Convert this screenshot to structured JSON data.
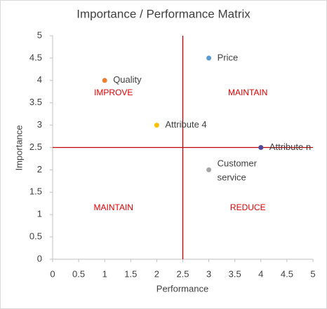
{
  "chart_data": {
    "type": "scatter",
    "title": "Importance / Performance Matrix",
    "x_label": "Performance",
    "y_label": "Importance",
    "series": [
      {
        "name": "Price",
        "color": "#5b9bd5",
        "x": [
          3
        ],
        "values": [
          4.5
        ]
      },
      {
        "name": "Quality",
        "color": "#ed7d31",
        "x": [
          1
        ],
        "values": [
          4
        ]
      },
      {
        "name": "Attribute 4",
        "color": "#ffc000",
        "x": [
          2
        ],
        "values": [
          3
        ]
      },
      {
        "name": "Attribute n",
        "color": "#4e4a9c",
        "x": [
          4
        ],
        "values": [
          2.5
        ]
      },
      {
        "name": "Customer service",
        "color": "#a5a5a5",
        "x": [
          3
        ],
        "values": [
          2
        ]
      }
    ],
    "quadrant_lines": {
      "x": 2.5,
      "y": 2.5,
      "color": "#c00000"
    },
    "quadrant_labels": [
      {
        "text": "IMPROVE",
        "quadrant": "top-left"
      },
      {
        "text": "MAINTAIN",
        "quadrant": "top-right"
      },
      {
        "text": "MAINTAIN",
        "quadrant": "bottom-left"
      },
      {
        "text": "REDUCE",
        "quadrant": "bottom-right"
      }
    ],
    "quadrant_label_color": "#e00000",
    "xlim": [
      0,
      5
    ],
    "xticks": [
      0,
      0.5,
      1,
      1.5,
      2,
      2.5,
      3,
      3.5,
      4,
      4.5,
      5
    ],
    "ylim": [
      0,
      5
    ],
    "yticks": [
      0,
      0.5,
      1,
      1.5,
      2,
      2.5,
      3,
      3.5,
      4,
      4.5,
      5
    ],
    "grid": false
  }
}
